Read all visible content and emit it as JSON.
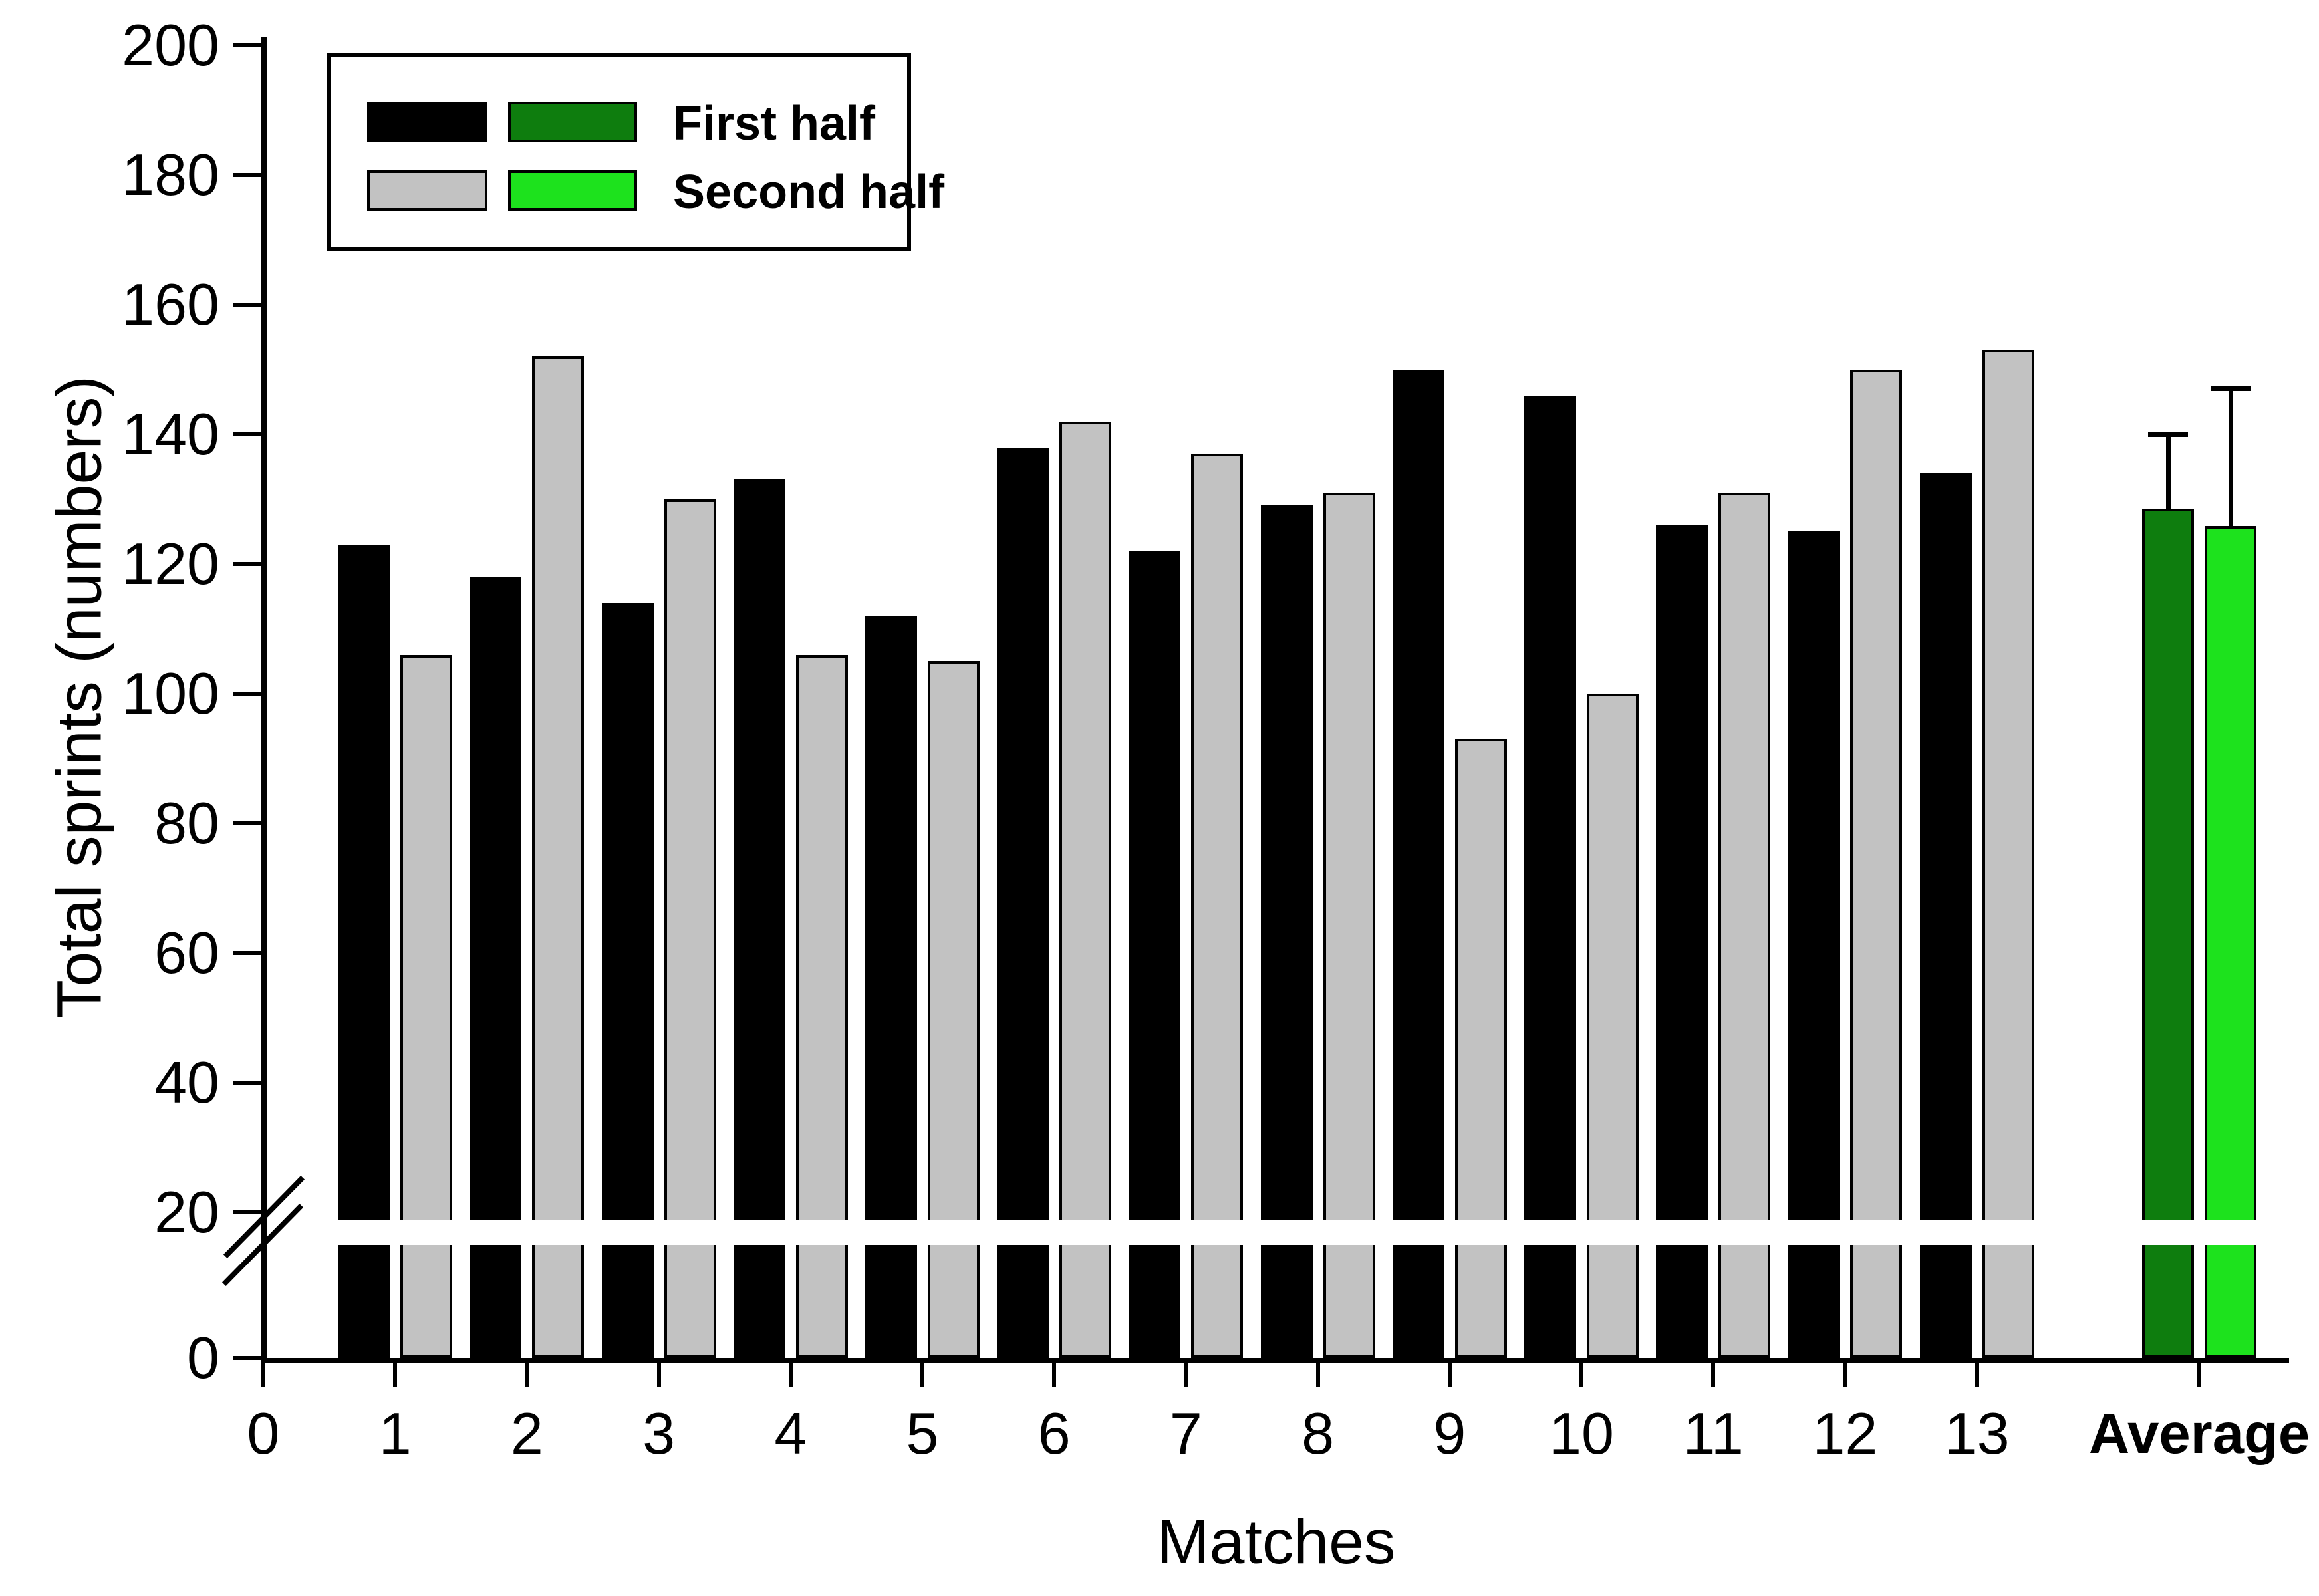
{
  "chart_data": {
    "type": "bar",
    "title": "",
    "xlabel": "Matches",
    "ylabel": "Total sprints (numbers)",
    "categories": [
      "1",
      "2",
      "3",
      "4",
      "5",
      "6",
      "7",
      "8",
      "9",
      "10",
      "11",
      "12",
      "13",
      "Average"
    ],
    "x_tick_labels": [
      "0",
      "1",
      "2",
      "3",
      "4",
      "5",
      "6",
      "7",
      "8",
      "9",
      "10",
      "11",
      "12",
      "13"
    ],
    "x_tick_label_average": "Average",
    "y_ticks": [
      0,
      20,
      40,
      60,
      80,
      100,
      120,
      140,
      160,
      180,
      200
    ],
    "ylim": [
      0,
      200
    ],
    "grid": false,
    "axis_break": {
      "between": [
        0,
        20
      ]
    },
    "legend_position": "top-left",
    "series": [
      {
        "name": "First half",
        "values": [
          123,
          118,
          114,
          133,
          112,
          138,
          122,
          129,
          150,
          146,
          126,
          125,
          134
        ],
        "average": 128.5,
        "average_error_top": 140,
        "color": "#000000",
        "average_color": "#0e7d0e"
      },
      {
        "name": "Second half",
        "values": [
          106,
          152,
          130,
          106,
          105,
          142,
          137,
          131,
          93,
          100,
          131,
          150,
          153
        ],
        "average": 125.8,
        "average_error_top": 147,
        "color": "#c2c2c2",
        "average_color": "#1de21d"
      }
    ]
  },
  "legend": {
    "first_label": "First half",
    "second_label": "Second half",
    "swatch_colors": {
      "first_matches": "#000000",
      "first_average": "#0e7d0e",
      "second_matches": "#c2c2c2",
      "second_average": "#1de21d"
    }
  },
  "colors": {
    "axis": "#000000",
    "background": "#ffffff",
    "bar_outline": "#000000"
  }
}
